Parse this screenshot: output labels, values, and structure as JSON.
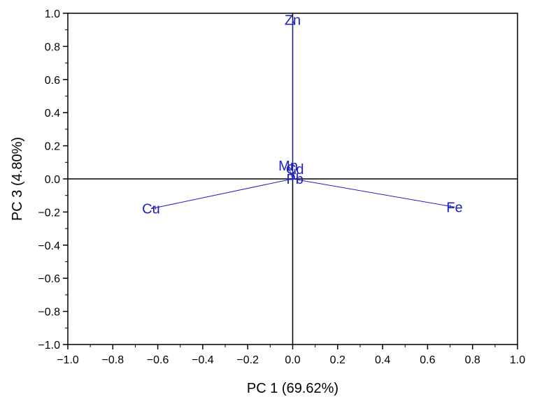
{
  "chart_data": {
    "type": "scatter",
    "title": "",
    "xlabel": "PC 1 (69.62%)",
    "ylabel": "PC 3 (4.80%)",
    "xlim": [
      -1.0,
      1.0
    ],
    "ylim": [
      -1.0,
      1.0
    ],
    "x_ticks": [
      "−1.0",
      "−0.8",
      "−0.6",
      "−0.4",
      "−0.2",
      "0.0",
      "0.2",
      "0.4",
      "0.6",
      "0.8",
      "1.0"
    ],
    "y_ticks": [
      "1.0",
      "0.8",
      "0.6",
      "0.4",
      "0.2",
      "0.0",
      "−0.2",
      "−0.4",
      "−0.6",
      "−0.8",
      "−1.0"
    ],
    "x_tick_values": [
      -1.0,
      -0.8,
      -0.6,
      -0.4,
      -0.2,
      0.0,
      0.2,
      0.4,
      0.6,
      0.8,
      1.0
    ],
    "y_tick_values": [
      1.0,
      0.8,
      0.6,
      0.4,
      0.2,
      0.0,
      -0.2,
      -0.4,
      -0.6,
      -0.8,
      -1.0
    ],
    "grid": false,
    "reference_lines": [
      "x = 0",
      "y = 0"
    ],
    "vector_color": "#1f1fbf",
    "points": [
      {
        "label": "Zn",
        "x": 0.0,
        "y": 0.96
      },
      {
        "label": "Mn",
        "x": -0.02,
        "y": 0.08
      },
      {
        "label": "Cd",
        "x": 0.01,
        "y": 0.06
      },
      {
        "label": "Pb",
        "x": 0.01,
        "y": 0.0
      },
      {
        "label": "Cu",
        "x": -0.63,
        "y": -0.18
      },
      {
        "label": "Fe",
        "x": 0.72,
        "y": -0.17
      }
    ]
  }
}
